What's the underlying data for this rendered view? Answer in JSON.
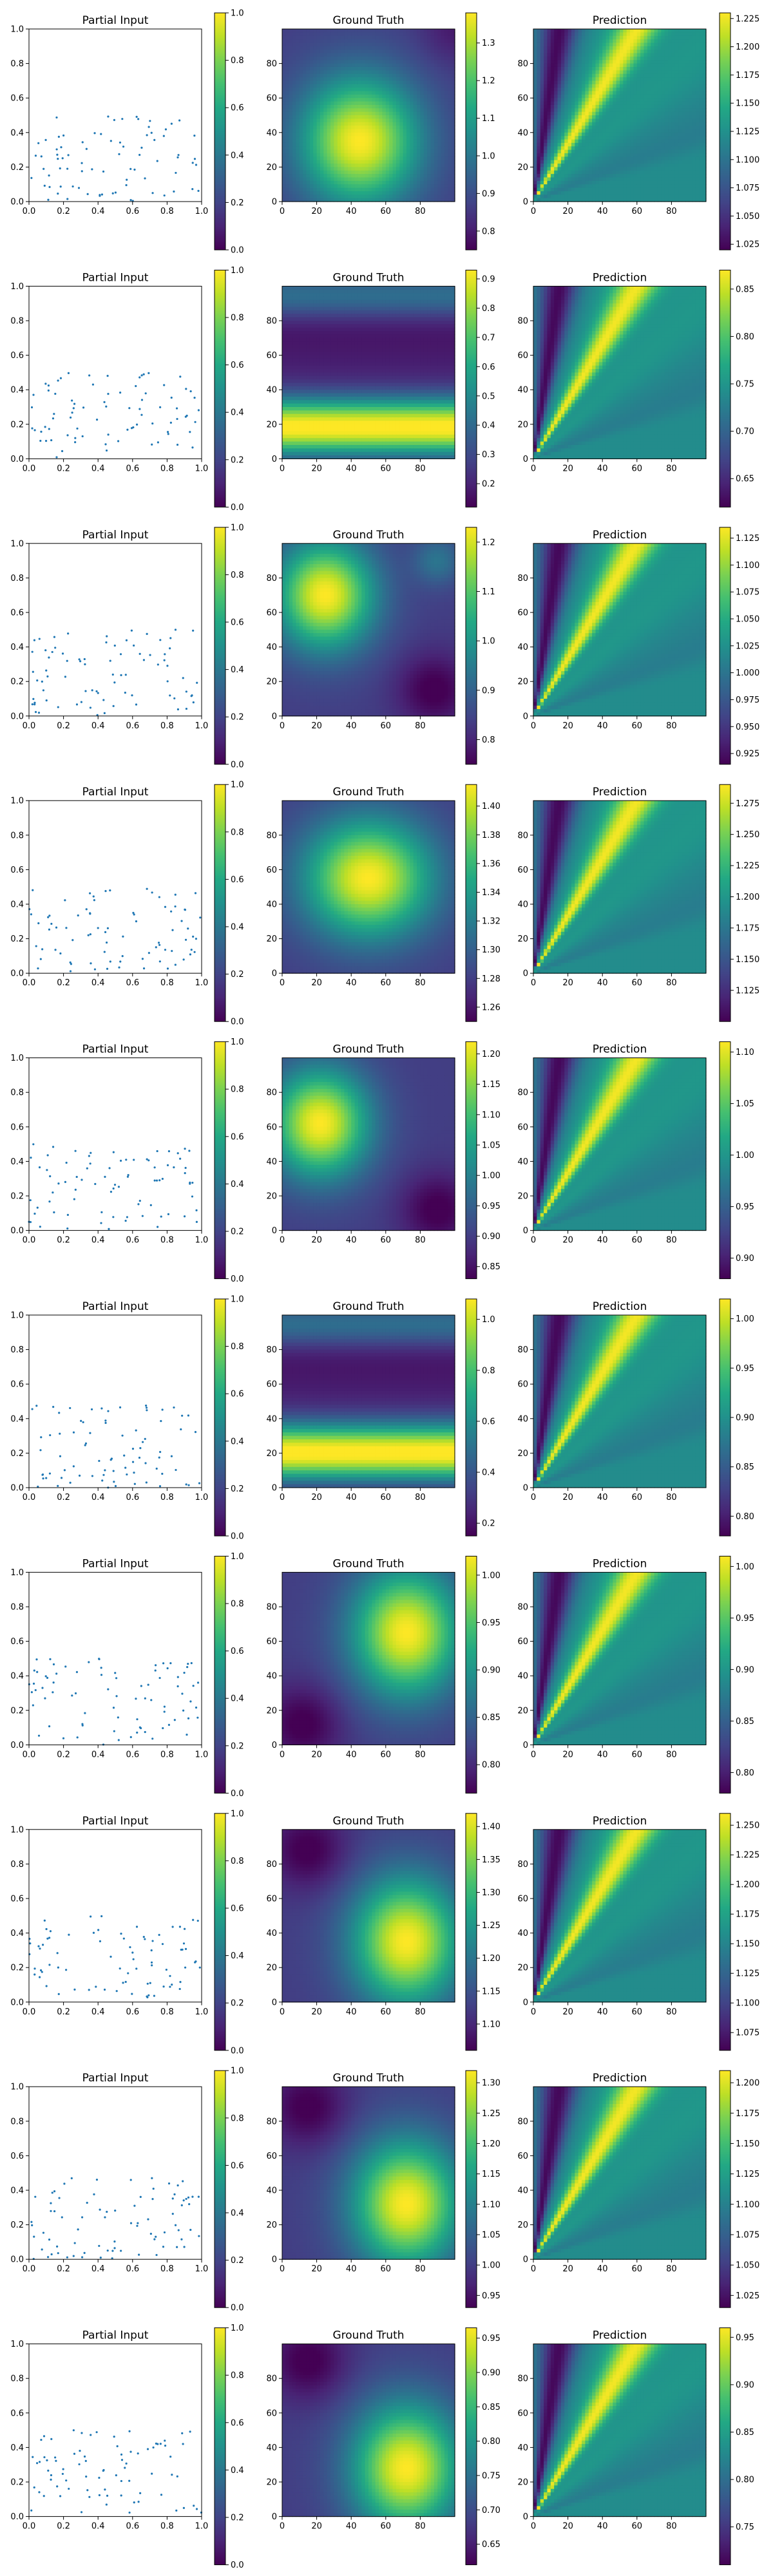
{
  "colors": {
    "scatter_point": "#1f77b4",
    "viridis": [
      "#440154",
      "#482475",
      "#414487",
      "#355f8d",
      "#2a788e",
      "#21918c",
      "#22a884",
      "#44bf70",
      "#7ad151",
      "#bddf26",
      "#fde725"
    ]
  },
  "chart_data": {
    "type": "heatmap",
    "layout_description": "10 rows x 3 panels (Partial Input scatter, Ground Truth heatmap, Prediction heatmap), each with a vertical colorbar",
    "panel_titles": [
      "Partial Input",
      "Ground Truth",
      "Prediction"
    ],
    "partial_input_axes": {
      "xlim": [
        0,
        1
      ],
      "ylim": [
        0,
        1
      ],
      "xticks": [
        "0.0",
        "0.2",
        "0.4",
        "0.6",
        "0.8",
        "1.0"
      ],
      "yticks": [
        "0.0",
        "0.2",
        "0.4",
        "0.6",
        "0.8",
        "1.0"
      ]
    },
    "grid_axes": {
      "xlim": [
        0,
        100
      ],
      "ylim": [
        0,
        100
      ],
      "xticks": [
        "0",
        "20",
        "40",
        "60",
        "80"
      ],
      "yticks": [
        "0",
        "20",
        "40",
        "60",
        "80"
      ]
    },
    "rows": [
      {
        "input": {
          "n_points": 80,
          "y_range": [
            0.0,
            0.5
          ],
          "colorbar": {
            "range": [
              0,
              1
            ],
            "ticks": [
              "0.0",
              "0.2",
              "0.4",
              "0.6",
              "0.8",
              "1.0"
            ]
          }
        },
        "truth": {
          "pattern": "blob",
          "blobs": [
            {
              "cx": 45,
              "cy": 35,
              "sx": 24,
              "sy": 26,
              "w": 1
            }
          ],
          "darks": [
            {
              "cx": 100,
              "cy": 100,
              "sx": 14,
              "sy": 14,
              "w": 0.5
            }
          ],
          "colorbar": {
            "range": [
              0.75,
              1.38
            ],
            "ticks": [
              "0.8",
              "0.9",
              "1.0",
              "1.1",
              "1.2",
              "1.3"
            ]
          }
        },
        "prediction": {
          "colorbar": {
            "range": [
              1.02,
              1.23
            ],
            "ticks": [
              "1.025",
              "1.050",
              "1.075",
              "1.100",
              "1.125",
              "1.150",
              "1.175",
              "1.200",
              "1.225"
            ]
          }
        }
      },
      {
        "input": {
          "n_points": 80,
          "y_range": [
            0.0,
            0.5
          ],
          "colorbar": {
            "range": [
              0,
              1
            ],
            "ticks": [
              "0.0",
              "0.2",
              "0.4",
              "0.6",
              "0.8",
              "1.0"
            ]
          }
        },
        "truth": {
          "pattern": "bands",
          "bands": [
            {
              "cy": 18,
              "s": 12,
              "w": 1
            },
            {
              "cy": 95,
              "s": 10,
              "w": 0.35
            }
          ],
          "colorbar": {
            "range": [
              0.12,
              0.93
            ],
            "ticks": [
              "0.2",
              "0.3",
              "0.4",
              "0.5",
              "0.6",
              "0.7",
              "0.8",
              "0.9"
            ]
          }
        },
        "prediction": {
          "colorbar": {
            "range": [
              0.62,
              0.87
            ],
            "ticks": [
              "0.65",
              "0.70",
              "0.75",
              "0.80",
              "0.85"
            ]
          }
        }
      },
      {
        "input": {
          "n_points": 80,
          "y_range": [
            0.0,
            0.5
          ],
          "colorbar": {
            "range": [
              0,
              1
            ],
            "ticks": [
              "0.0",
              "0.2",
              "0.4",
              "0.6",
              "0.8",
              "1.0"
            ]
          }
        },
        "truth": {
          "pattern": "blob",
          "blobs": [
            {
              "cx": 25,
              "cy": 70,
              "sx": 20,
              "sy": 22,
              "w": 1
            },
            {
              "cx": 90,
              "cy": 90,
              "sx": 10,
              "sy": 10,
              "w": 0.25
            }
          ],
          "darks": [
            {
              "cx": 88,
              "cy": 15,
              "sx": 15,
              "sy": 15,
              "w": 0.9
            }
          ],
          "colorbar": {
            "range": [
              0.75,
              1.23
            ],
            "ticks": [
              "0.8",
              "0.9",
              "1.0",
              "1.1",
              "1.2"
            ]
          }
        },
        "prediction": {
          "colorbar": {
            "range": [
              0.915,
              1.135
            ],
            "ticks": [
              "0.925",
              "0.950",
              "0.975",
              "1.000",
              "1.025",
              "1.050",
              "1.075",
              "1.100",
              "1.125"
            ]
          }
        }
      },
      {
        "input": {
          "n_points": 80,
          "y_range": [
            0.0,
            0.5
          ],
          "colorbar": {
            "range": [
              0,
              1
            ],
            "ticks": [
              "0.0",
              "0.2",
              "0.4",
              "0.6",
              "0.8",
              "1.0"
            ]
          }
        },
        "truth": {
          "pattern": "blob",
          "blobs": [
            {
              "cx": 50,
              "cy": 55,
              "sx": 26,
              "sy": 24,
              "w": 1
            }
          ],
          "darks": [],
          "colorbar": {
            "range": [
              1.25,
              1.415
            ],
            "ticks": [
              "1.26",
              "1.28",
              "1.30",
              "1.32",
              "1.34",
              "1.36",
              "1.38",
              "1.40"
            ]
          }
        },
        "prediction": {
          "colorbar": {
            "range": [
              1.1,
              1.29
            ],
            "ticks": [
              "1.125",
              "1.150",
              "1.175",
              "1.200",
              "1.225",
              "1.250",
              "1.275"
            ]
          }
        }
      },
      {
        "input": {
          "n_points": 80,
          "y_range": [
            0.0,
            0.5
          ],
          "colorbar": {
            "range": [
              0,
              1
            ],
            "ticks": [
              "0.0",
              "0.2",
              "0.4",
              "0.6",
              "0.8",
              "1.0"
            ]
          }
        },
        "truth": {
          "pattern": "blob",
          "blobs": [
            {
              "cx": 22,
              "cy": 62,
              "sx": 20,
              "sy": 22,
              "w": 1
            }
          ],
          "darks": [
            {
              "cx": 90,
              "cy": 12,
              "sx": 15,
              "sy": 15,
              "w": 0.9
            }
          ],
          "colorbar": {
            "range": [
              0.83,
              1.22
            ],
            "ticks": [
              "0.85",
              "0.90",
              "0.95",
              "1.00",
              "1.05",
              "1.10",
              "1.15",
              "1.20"
            ]
          }
        },
        "prediction": {
          "colorbar": {
            "range": [
              0.88,
              1.11
            ],
            "ticks": [
              "0.90",
              "0.95",
              "1.00",
              "1.05",
              "1.10"
            ]
          }
        }
      },
      {
        "input": {
          "n_points": 80,
          "y_range": [
            0.0,
            0.5
          ],
          "colorbar": {
            "range": [
              0,
              1
            ],
            "ticks": [
              "0.0",
              "0.2",
              "0.4",
              "0.6",
              "0.8",
              "1.0"
            ]
          }
        },
        "truth": {
          "pattern": "bands",
          "bands": [
            {
              "cy": 20,
              "s": 12,
              "w": 1
            },
            {
              "cy": 95,
              "s": 10,
              "w": 0.35
            }
          ],
          "colorbar": {
            "range": [
              0.15,
              1.08
            ],
            "ticks": [
              "0.2",
              "0.4",
              "0.6",
              "0.8",
              "1.0"
            ]
          }
        },
        "prediction": {
          "colorbar": {
            "range": [
              0.78,
              1.02
            ],
            "ticks": [
              "0.80",
              "0.85",
              "0.90",
              "0.95",
              "1.00"
            ]
          }
        }
      },
      {
        "input": {
          "n_points": 80,
          "y_range": [
            0.0,
            0.5
          ],
          "colorbar": {
            "range": [
              0,
              1
            ],
            "ticks": [
              "0.0",
              "0.2",
              "0.4",
              "0.6",
              "0.8",
              "1.0"
            ]
          }
        },
        "truth": {
          "pattern": "blob",
          "blobs": [
            {
              "cx": 72,
              "cy": 65,
              "sx": 22,
              "sy": 26,
              "w": 1
            }
          ],
          "darks": [
            {
              "cx": 12,
              "cy": 12,
              "sx": 16,
              "sy": 16,
              "w": 0.9
            }
          ],
          "colorbar": {
            "range": [
              0.77,
              1.02
            ],
            "ticks": [
              "0.80",
              "0.85",
              "0.90",
              "0.95",
              "1.00"
            ]
          }
        },
        "prediction": {
          "colorbar": {
            "range": [
              0.78,
              1.01
            ],
            "ticks": [
              "0.80",
              "0.85",
              "0.90",
              "0.95",
              "1.00"
            ]
          }
        }
      },
      {
        "input": {
          "n_points": 80,
          "y_range": [
            0.0,
            0.5
          ],
          "colorbar": {
            "range": [
              0,
              1
            ],
            "ticks": [
              "0.0",
              "0.2",
              "0.4",
              "0.6",
              "0.8",
              "1.0"
            ]
          }
        },
        "truth": {
          "pattern": "blob",
          "blobs": [
            {
              "cx": 72,
              "cy": 35,
              "sx": 22,
              "sy": 26,
              "w": 1
            }
          ],
          "darks": [
            {
              "cx": 15,
              "cy": 88,
              "sx": 16,
              "sy": 16,
              "w": 0.9
            }
          ],
          "colorbar": {
            "range": [
              1.06,
              1.42
            ],
            "ticks": [
              "1.10",
              "1.15",
              "1.20",
              "1.25",
              "1.30",
              "1.35",
              "1.40"
            ]
          }
        },
        "prediction": {
          "colorbar": {
            "range": [
              1.06,
              1.26
            ],
            "ticks": [
              "1.075",
              "1.100",
              "1.125",
              "1.150",
              "1.175",
              "1.200",
              "1.225",
              "1.250"
            ]
          }
        }
      },
      {
        "input": {
          "n_points": 80,
          "y_range": [
            0.0,
            0.5
          ],
          "colorbar": {
            "range": [
              0,
              1
            ],
            "ticks": [
              "0.0",
              "0.2",
              "0.4",
              "0.6",
              "0.8",
              "1.0"
            ]
          }
        },
        "truth": {
          "pattern": "blob",
          "blobs": [
            {
              "cx": 72,
              "cy": 32,
              "sx": 22,
              "sy": 26,
              "w": 1
            }
          ],
          "darks": [
            {
              "cx": 15,
              "cy": 88,
              "sx": 16,
              "sy": 16,
              "w": 0.9
            }
          ],
          "colorbar": {
            "range": [
              0.93,
              1.32
            ],
            "ticks": [
              "0.95",
              "1.00",
              "1.05",
              "1.10",
              "1.15",
              "1.20",
              "1.25",
              "1.30"
            ]
          }
        },
        "prediction": {
          "colorbar": {
            "range": [
              1.015,
              1.21
            ],
            "ticks": [
              "1.025",
              "1.050",
              "1.075",
              "1.100",
              "1.125",
              "1.150",
              "1.175",
              "1.200"
            ]
          }
        }
      },
      {
        "input": {
          "n_points": 80,
          "y_range": [
            0.0,
            0.5
          ],
          "colorbar": {
            "range": [
              0,
              1
            ],
            "ticks": [
              "0.0",
              "0.2",
              "0.4",
              "0.6",
              "0.8",
              "1.0"
            ]
          }
        },
        "truth": {
          "pattern": "blob",
          "blobs": [
            {
              "cx": 72,
              "cy": 28,
              "sx": 22,
              "sy": 26,
              "w": 1
            }
          ],
          "darks": [
            {
              "cx": 15,
              "cy": 90,
              "sx": 16,
              "sy": 16,
              "w": 0.9
            }
          ],
          "colorbar": {
            "range": [
              0.62,
              0.965
            ],
            "ticks": [
              "0.65",
              "0.70",
              "0.75",
              "0.80",
              "0.85",
              "0.90",
              "0.95"
            ]
          }
        },
        "prediction": {
          "colorbar": {
            "range": [
              0.71,
              0.96
            ],
            "ticks": [
              "0.75",
              "0.80",
              "0.85",
              "0.90",
              "0.95"
            ]
          }
        }
      }
    ]
  }
}
